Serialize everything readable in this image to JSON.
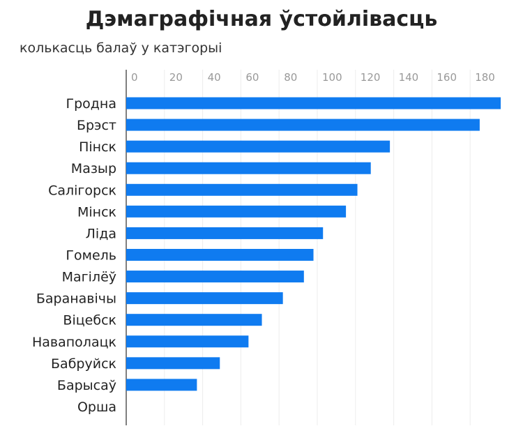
{
  "chart_data": {
    "type": "bar",
    "orientation": "horizontal",
    "title": "Дэмаграфічная ўстойлівасць",
    "subtitle": "колькасць балаў у катэгорыі",
    "categories": [
      "Гродна",
      "Брэст",
      "Пінск",
      "Мазыр",
      "Салігорск",
      "Мінск",
      "Ліда",
      "Гомель",
      "Магілёў",
      "Баранавічы",
      "Віцебск",
      "Наваполацк",
      "Бабруйск",
      "Барысаў",
      "Орша"
    ],
    "values": [
      196,
      185,
      138,
      128,
      121,
      115,
      103,
      98,
      93,
      82,
      71,
      64,
      49,
      37,
      0
    ],
    "xticks": [
      "0",
      "20",
      "40",
      "60",
      "80",
      "100",
      "120",
      "140",
      "160",
      "180"
    ],
    "xlim": [
      0,
      196
    ],
    "axis_position": "top",
    "grid": true,
    "bar_color": "#0f7bf0"
  }
}
